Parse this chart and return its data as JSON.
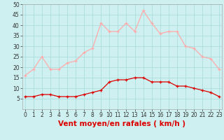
{
  "hours": [
    0,
    1,
    2,
    3,
    4,
    5,
    6,
    7,
    8,
    9,
    10,
    11,
    12,
    13,
    14,
    15,
    16,
    17,
    18,
    19,
    20,
    21,
    22,
    23
  ],
  "vent_moyen": [
    6,
    6,
    7,
    7,
    6,
    6,
    6,
    7,
    8,
    9,
    13,
    14,
    14,
    15,
    15,
    13,
    13,
    13,
    11,
    11,
    10,
    9,
    8,
    6
  ],
  "rafales": [
    16,
    19,
    25,
    19,
    19,
    22,
    23,
    27,
    29,
    41,
    37,
    37,
    41,
    37,
    47,
    41,
    36,
    37,
    37,
    30,
    29,
    25,
    24,
    19
  ],
  "color_moyen": "#dd0000",
  "color_rafales": "#ffaaaa",
  "bg_color": "#cff0f0",
  "grid_color": "#aadddd",
  "xlabel": "Vent moyen/en rafales ( km/h )",
  "ylim": [
    0,
    50
  ],
  "yticks": [
    5,
    10,
    15,
    20,
    25,
    30,
    35,
    40,
    45,
    50
  ],
  "xticks": [
    0,
    1,
    2,
    3,
    4,
    5,
    6,
    7,
    8,
    9,
    10,
    11,
    12,
    13,
    14,
    15,
    16,
    17,
    18,
    19,
    20,
    21,
    22,
    23
  ],
  "tick_fontsize": 5.5,
  "xlabel_fontsize": 7.5,
  "line_width": 0.9,
  "marker_size": 3.0
}
